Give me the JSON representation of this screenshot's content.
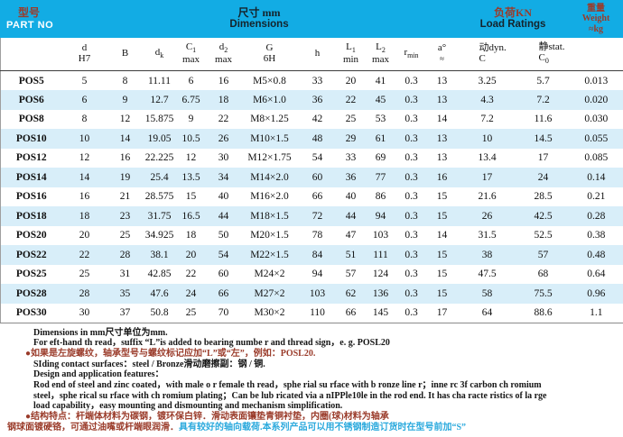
{
  "colors": {
    "band": "#12ace4",
    "rowalt": "#d8eef9",
    "maroon": "#9a3b2a",
    "cyan": "#2aa9dd"
  },
  "header": {
    "part_no_zh": "型号",
    "part_no_en": "PART NO",
    "dims_zh": "尺寸 mm",
    "dims_en": "Dimensions",
    "load_zh": "负荷KN",
    "load_en": "Load Ratings",
    "weight_zh": "重量",
    "weight_en": "Weight",
    "weight_unit": "≈kg"
  },
  "columns": [
    {
      "id": "d",
      "top": "d",
      "bottom": "H7",
      "align": "center"
    },
    {
      "id": "B",
      "top": "B",
      "bottom": "",
      "align": "center"
    },
    {
      "id": "dk",
      "top": "d<sub>k</sub>",
      "bottom": "",
      "align": "center"
    },
    {
      "id": "C1",
      "top": "C<sub>1</sub>",
      "bottom": "max",
      "align": "center"
    },
    {
      "id": "d2",
      "top": "d<sub>2</sub>",
      "bottom": "max",
      "align": "center"
    },
    {
      "id": "G",
      "top": "G",
      "bottom": "6H",
      "align": "center"
    },
    {
      "id": "h",
      "top": "h",
      "bottom": "",
      "align": "center"
    },
    {
      "id": "L1",
      "top": "L<sub>1</sub>",
      "bottom": "min",
      "align": "center"
    },
    {
      "id": "L2",
      "top": "L<sub>2</sub>",
      "bottom": "max",
      "align": "center"
    },
    {
      "id": "rmin",
      "top": "r<sub>min</sub>",
      "bottom": "",
      "align": "center"
    },
    {
      "id": "a",
      "top": "a°",
      "bottom": "<span class=\"approx\">≈</span>",
      "align": "center"
    },
    {
      "id": "dynC",
      "top": "动dyn.",
      "bottom": "C",
      "align": "left"
    },
    {
      "id": "statC",
      "top": "静stat.",
      "bottom": "C<sub>0</sub>",
      "align": "left"
    },
    {
      "id": "weight",
      "top": "",
      "bottom": "",
      "align": "center"
    }
  ],
  "rows": [
    {
      "part": "POS5",
      "v": [
        "5",
        "8",
        "11.11",
        "6",
        "16",
        "M5×0.8",
        "33",
        "20",
        "41",
        "0.3",
        "13",
        "3.25",
        "5.7",
        "0.013"
      ]
    },
    {
      "part": "POS6",
      "v": [
        "6",
        "9",
        "12.7",
        "6.75",
        "18",
        "M6×1.0",
        "36",
        "22",
        "45",
        "0.3",
        "13",
        "4.3",
        "7.2",
        "0.020"
      ]
    },
    {
      "part": "POS8",
      "v": [
        "8",
        "12",
        "15.875",
        "9",
        "22",
        "M8×1.25",
        "42",
        "25",
        "53",
        "0.3",
        "14",
        "7.2",
        "11.6",
        "0.030"
      ]
    },
    {
      "part": "POS10",
      "v": [
        "10",
        "14",
        "19.05",
        "10.5",
        "26",
        "M10×1.5",
        "48",
        "29",
        "61",
        "0.3",
        "13",
        "10",
        "14.5",
        "0.055"
      ]
    },
    {
      "part": "POS12",
      "v": [
        "12",
        "16",
        "22.225",
        "12",
        "30",
        "M12×1.75",
        "54",
        "33",
        "69",
        "0.3",
        "13",
        "13.4",
        "17",
        "0.085"
      ]
    },
    {
      "part": "POS14",
      "v": [
        "14",
        "19",
        "25.4",
        "13.5",
        "34",
        "M14×2.0",
        "60",
        "36",
        "77",
        "0.3",
        "16",
        "17",
        "24",
        "0.14"
      ]
    },
    {
      "part": "POS16",
      "v": [
        "16",
        "21",
        "28.575",
        "15",
        "40",
        "M16×2.0",
        "66",
        "40",
        "86",
        "0.3",
        "15",
        "21.6",
        "28.5",
        "0.21"
      ]
    },
    {
      "part": "POS18",
      "v": [
        "18",
        "23",
        "31.75",
        "16.5",
        "44",
        "M18×1.5",
        "72",
        "44",
        "94",
        "0.3",
        "15",
        "26",
        "42.5",
        "0.28"
      ]
    },
    {
      "part": "POS20",
      "v": [
        "20",
        "25",
        "34.925",
        "18",
        "50",
        "M20×1.5",
        "78",
        "47",
        "103",
        "0.3",
        "14",
        "31.5",
        "52.5",
        "0.38"
      ]
    },
    {
      "part": "POS22",
      "v": [
        "22",
        "28",
        "38.1",
        "20",
        "54",
        "M22×1.5",
        "84",
        "51",
        "111",
        "0.3",
        "15",
        "38",
        "57",
        "0.48"
      ]
    },
    {
      "part": "POS25",
      "v": [
        "25",
        "31",
        "42.85",
        "22",
        "60",
        "M24×2",
        "94",
        "57",
        "124",
        "0.3",
        "15",
        "47.5",
        "68",
        "0.64"
      ]
    },
    {
      "part": "POS28",
      "v": [
        "28",
        "35",
        "47.6",
        "24",
        "66",
        "M27×2",
        "103",
        "62",
        "136",
        "0.3",
        "15",
        "58",
        "75.5",
        "0.96"
      ]
    },
    {
      "part": "POS30",
      "v": [
        "30",
        "37",
        "50.8",
        "25",
        "70",
        "M30×2",
        "110",
        "66",
        "145",
        "0.3",
        "17",
        "64",
        "88.6",
        "1.1"
      ]
    }
  ],
  "notes": [
    {
      "cls": "",
      "segments": [
        {
          "text": "Dimensions in mm尺寸单位为mm.",
          "style": "k"
        }
      ]
    },
    {
      "cls": "",
      "segments": [
        {
          "text": "For eft-hand th read，suffix “L”is added to bearing numbe r and thread sign，e. g. POSL20",
          "style": "k"
        }
      ]
    },
    {
      "cls": "bullet",
      "segments": [
        {
          "text": "●如果是左旋螺纹，轴承型号与螺纹标记应加“L”或“左”，例如：POSL20.",
          "style": "m"
        }
      ]
    },
    {
      "cls": "",
      "segments": [
        {
          "text": "SIding contact surfaces：steel / Bronze滑动磨擦副：钢 / 铜.",
          "style": "k"
        }
      ]
    },
    {
      "cls": "",
      "segments": [
        {
          "text": "Design and application features：",
          "style": "k"
        }
      ]
    },
    {
      "cls": "",
      "segments": [
        {
          "text": "Rod end of steel and zinc coated，with male o r female th read，sphe rial su rface with b ronze line r；inne rc 3f carbon ch romium",
          "style": "k"
        }
      ]
    },
    {
      "cls": "",
      "segments": [
        {
          "text": "steel，sphe rical su rface with ch romium plating；Can be lub ricated via a nIPPle10le in the rod end.  It has cha racte ristics of la rge",
          "style": "k"
        }
      ]
    },
    {
      "cls": "",
      "segments": [
        {
          "text": "load capability，easy mounting and dismounting and mechanism simplification.",
          "style": "k"
        }
      ]
    },
    {
      "cls": "bullet",
      "segments": [
        {
          "text": "●结构特点：杆端体材料为碳钢，镀环保白锌．滑动表面镶垫青铜衬垫，内圈(球)材料为轴承",
          "style": "m"
        }
      ]
    },
    {
      "cls": "flush",
      "segments": [
        {
          "text": "钢球面镀硬铬，可通过油嘴或杆端眼润滑．",
          "style": "m"
        },
        {
          "text": "具有较好的轴向载荷.本系列产品可以用不锈钢制造订货时在型号前加“S”",
          "style": "c"
        }
      ]
    }
  ]
}
